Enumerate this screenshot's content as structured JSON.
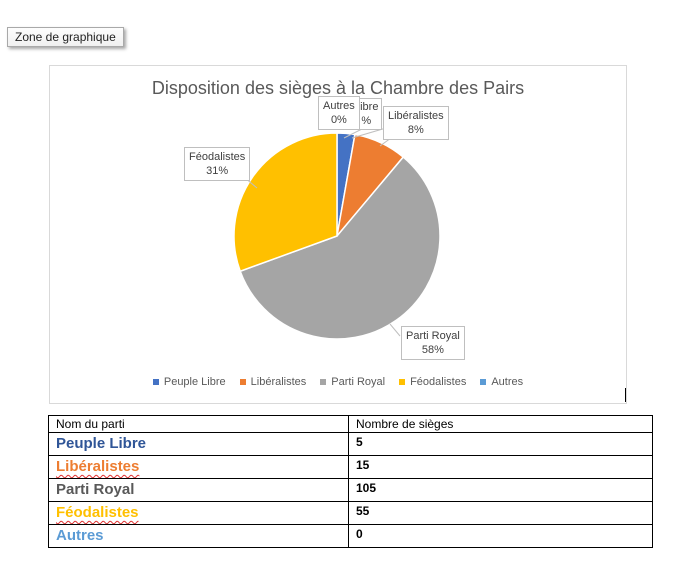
{
  "tooltip": "Zone de graphique",
  "chart_data": {
    "type": "pie",
    "title": "Disposition des sièges à la Chambre des Pairs",
    "categories": [
      "Peuple Libre",
      "Libéralistes",
      "Parti Royal",
      "Féodalistes",
      "Autres"
    ],
    "values": [
      5,
      15,
      105,
      55,
      0
    ],
    "colors": [
      "#4472c4",
      "#ed7d31",
      "#a5a5a5",
      "#ffc000",
      "#5b9bd5"
    ],
    "legend_position": "bottom",
    "data_labels": {
      "peuple_libre": {
        "name": "Libre",
        "pct": "%"
      },
      "liberalistes": {
        "name": "Libéralistes",
        "pct": "8%"
      },
      "parti_royal": {
        "name": "Parti Royal",
        "pct": "58%"
      },
      "feodalistes": {
        "name": "Féodalistes",
        "pct": "31%"
      },
      "autres": {
        "name": "Autres",
        "pct": "0%"
      }
    }
  },
  "table": {
    "headers": [
      "Nom du parti",
      "Nombre de sièges"
    ],
    "rows": [
      {
        "name": "Peuple Libre",
        "seats": "5",
        "color": "#2f5597",
        "spell": false
      },
      {
        "name": "Libéralistes",
        "seats": "15",
        "color": "#ed7d31",
        "spell": true
      },
      {
        "name": "Parti Royal",
        "seats": "105",
        "color": "#595959",
        "spell": false
      },
      {
        "name": "Féodalistes",
        "seats": "55",
        "color": "#ffc000",
        "spell": true
      },
      {
        "name": "Autres",
        "seats": "0",
        "color": "#5b9bd5",
        "spell": false
      }
    ]
  }
}
